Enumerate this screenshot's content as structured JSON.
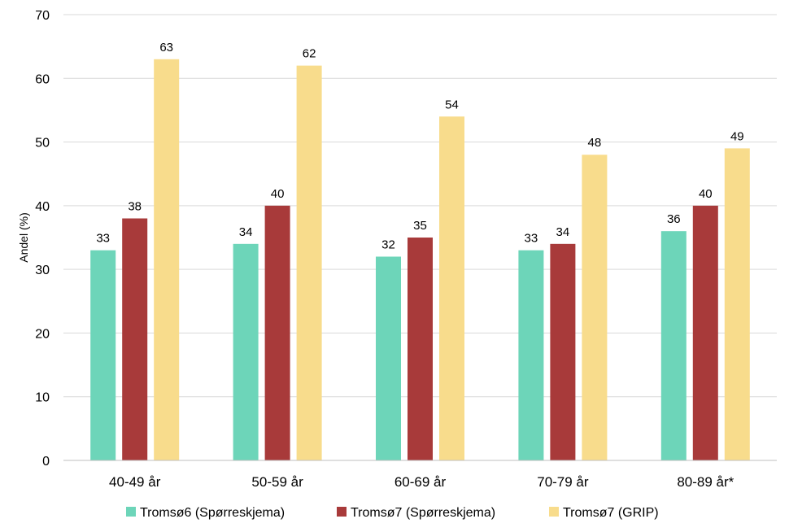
{
  "chart_data": {
    "type": "bar",
    "categories": [
      "40-49 år",
      "50-59 år",
      "60-69 år",
      "70-79 år",
      "80-89 år*"
    ],
    "series": [
      {
        "name": "Tromsø6 (Spørreskjema)",
        "values": [
          33,
          34,
          32,
          33,
          36
        ],
        "data_labels": [
          "33",
          "34",
          "32",
          "33",
          "36"
        ],
        "color": "#6dd5b9"
      },
      {
        "name": "Tromsø7 (Spørreskjema)",
        "values": [
          38,
          40,
          35,
          34,
          40
        ],
        "data_labels": [
          "38",
          "40",
          "35",
          "34",
          "40"
        ],
        "color": "#a83a3a"
      },
      {
        "name": "Tromsø7 (GRIP)",
        "values": [
          63,
          62,
          54,
          48,
          49
        ],
        "data_labels": [
          "63",
          "62",
          "54",
          "48",
          "49"
        ],
        "color": "#f8dc8c"
      }
    ],
    "ylabel": "Andel (%)",
    "ylim": [
      0,
      70
    ],
    "yticks": [
      "0",
      "10",
      "20",
      "30",
      "40",
      "50",
      "60",
      "70"
    ],
    "grid": true,
    "legend_position": "bottom"
  }
}
